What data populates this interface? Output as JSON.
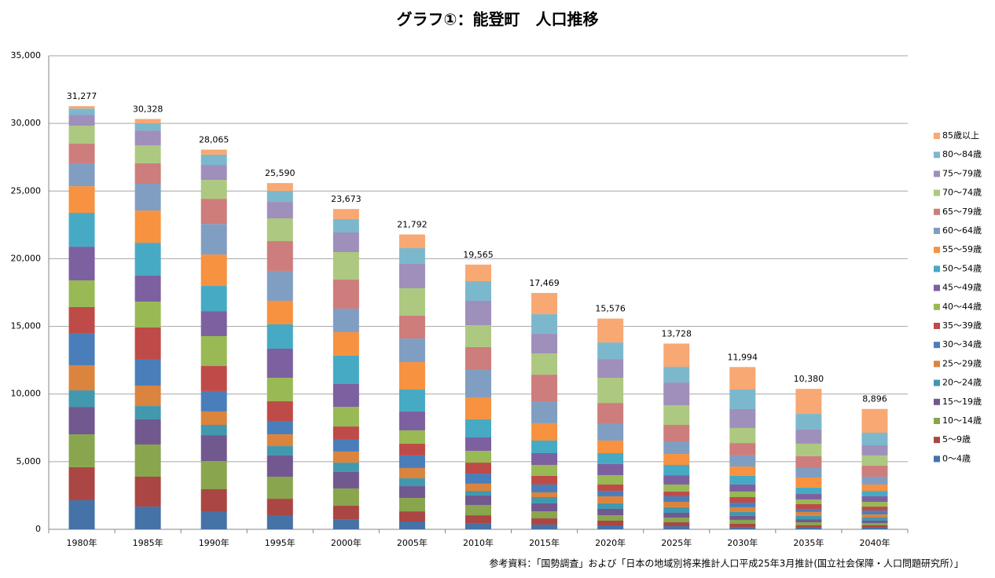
{
  "chart_data": {
    "type": "stacked_bar",
    "title": "グラフ①：能登町　人口推移",
    "categories": [
      "1980年",
      "1985年",
      "1990年",
      "1995年",
      "2000年",
      "2005年",
      "2010年",
      "2015年",
      "2020年",
      "2025年",
      "2030年",
      "2035年",
      "2040年"
    ],
    "series": [
      {
        "name": "0～4歳",
        "color": "#4572a7",
        "values": [
          2150,
          1680,
          1280,
          990,
          750,
          580,
          460,
          350,
          290,
          230,
          170,
          120,
          120
        ]
      },
      {
        "name": "5～9歳",
        "color": "#aa4643",
        "values": [
          2440,
          2210,
          1680,
          1270,
          990,
          750,
          580,
          460,
          350,
          290,
          240,
          170,
          170
        ]
      },
      {
        "name": "10～14歳",
        "color": "#89a54e",
        "values": [
          2430,
          2380,
          2090,
          1630,
          1280,
          990,
          760,
          520,
          400,
          350,
          290,
          230,
          170
        ]
      },
      {
        "name": "15～19歳",
        "color": "#71588f",
        "values": [
          2030,
          1860,
          1910,
          1570,
          1220,
          870,
          700,
          590,
          470,
          350,
          290,
          230,
          180
        ]
      },
      {
        "name": "20～24歳",
        "color": "#4198af",
        "values": [
          1220,
          980,
          760,
          690,
          690,
          580,
          340,
          460,
          410,
          410,
          290,
          240,
          230
        ]
      },
      {
        "name": "25～29歳",
        "color": "#db843d",
        "values": [
          1860,
          1510,
          990,
          870,
          820,
          760,
          530,
          350,
          520,
          400,
          350,
          290,
          230
        ]
      },
      {
        "name": "30～34歳",
        "color": "#4a7ebb",
        "values": [
          2380,
          1920,
          1510,
          990,
          870,
          930,
          750,
          580,
          400,
          410,
          340,
          230,
          290
        ]
      },
      {
        "name": "35～39歳",
        "color": "#be4b48",
        "values": [
          1920,
          2380,
          1850,
          1450,
          980,
          870,
          810,
          640,
          470,
          350,
          410,
          350,
          290
        ]
      },
      {
        "name": "40～44歳",
        "color": "#98b954",
        "values": [
          1970,
          1910,
          2210,
          1740,
          1450,
          980,
          870,
          810,
          690,
          520,
          410,
          350,
          350
        ]
      },
      {
        "name": "45～49歳",
        "color": "#7d60a0",
        "values": [
          2490,
          1920,
          1850,
          2150,
          1690,
          1400,
          990,
          870,
          820,
          690,
          520,
          400,
          410
        ]
      },
      {
        "name": "50～54歳",
        "color": "#46aac5",
        "values": [
          2500,
          2430,
          1860,
          1800,
          2090,
          1620,
          1340,
          930,
          810,
          760,
          640,
          470,
          400
        ]
      },
      {
        "name": "55～59歳",
        "color": "#f69240",
        "values": [
          1970,
          2380,
          2320,
          1740,
          1740,
          2030,
          1620,
          1280,
          930,
          810,
          690,
          750,
          470
        ]
      },
      {
        "name": "60～64歳",
        "color": "#809ec2",
        "values": [
          1690,
          1980,
          2260,
          2210,
          1740,
          1740,
          2030,
          1620,
          1220,
          930,
          820,
          700,
          580
        ]
      },
      {
        "name": "65～79歳",
        "color": "#cd7d7b",
        "values": [
          1450,
          1510,
          1860,
          2200,
          2150,
          1690,
          1690,
          1970,
          1560,
          1220,
          920,
          870,
          810
        ]
      },
      {
        "name": "70～74歳",
        "color": "#adc881",
        "values": [
          1330,
          1330,
          1390,
          1680,
          2030,
          2030,
          1620,
          1570,
          1860,
          1450,
          1110,
          930,
          760
        ]
      },
      {
        "name": "75～79歳",
        "color": "#9f8fbb",
        "values": [
          810,
          1100,
          1110,
          1220,
          1450,
          1800,
          1800,
          1450,
          1390,
          1680,
          1390,
          1040,
          750
        ]
      },
      {
        "name": "80～84歳",
        "color": "#7cb8cd",
        "values": [
          460,
          530,
          760,
          810,
          990,
          1160,
          1450,
          1450,
          1220,
          1160,
          1450,
          1160,
          930
        ]
      },
      {
        "name": "85歳以上",
        "color": "#f8a872",
        "values": [
          177,
          318,
          375,
          580,
          743,
          1012,
          1225,
          1569,
          1766,
          1718,
          1664,
          1850,
          1756
        ]
      }
    ],
    "totals": [
      31277,
      30328,
      28065,
      25590,
      23673,
      21792,
      19565,
      17469,
      15576,
      13728,
      11994,
      10380,
      8896
    ],
    "total_labels": [
      "31,277",
      "30,328",
      "28,065",
      "25,590",
      "23,673",
      "21,792",
      "19,565",
      "17,469",
      "15,576",
      "13,728",
      "11,994",
      "10,380",
      "8,896"
    ],
    "ylim": [
      0,
      35000
    ],
    "yticks": [
      0,
      {
        "value": 5000,
        "label": "5,000"
      },
      {
        "value": 10000,
        "label": "10,000"
      },
      {
        "value": 15000,
        "label": "15,000"
      },
      {
        "value": 20000,
        "label": "20,000"
      },
      {
        "value": 25000,
        "label": "25,000"
      },
      {
        "value": 30000,
        "label": "30,000"
      },
      {
        "value": 35000,
        "label": "35,000"
      }
    ],
    "grid": true,
    "legend": "right",
    "source": "参考資料：「国勢調査」および「日本の地域別将来推計人口平成25年3月推計(国立社会保障・人口問題研究所）」"
  }
}
